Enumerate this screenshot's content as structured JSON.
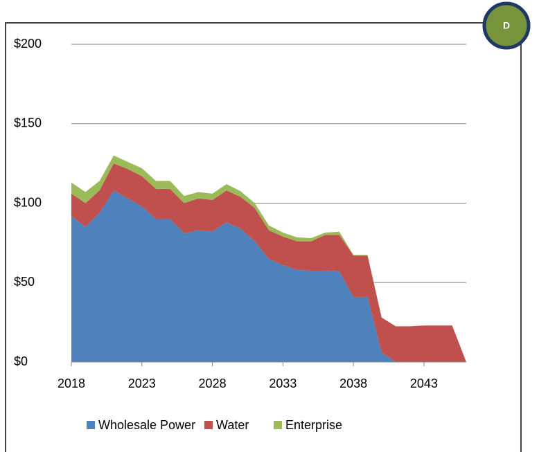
{
  "chart_data": {
    "type": "stacked-area",
    "badge": "D",
    "x": [
      2018,
      2019,
      2020,
      2021,
      2022,
      2023,
      2024,
      2025,
      2026,
      2027,
      2028,
      2029,
      2030,
      2031,
      2032,
      2033,
      2034,
      2035,
      2036,
      2037,
      2038,
      2039,
      2040,
      2041,
      2042,
      2043,
      2044,
      2045,
      2046
    ],
    "xlim": [
      2018,
      2046
    ],
    "xticks": [
      2018,
      2023,
      2028,
      2033,
      2038,
      2043
    ],
    "ylim": [
      0,
      200
    ],
    "yticks": [
      {
        "value": 0,
        "label": "$0"
      },
      {
        "value": 50,
        "label": "$50"
      },
      {
        "value": 100,
        "label": "$100"
      },
      {
        "value": 150,
        "label": "$150"
      },
      {
        "value": 200,
        "label": "$200"
      }
    ],
    "grid": true,
    "legend": "bottom",
    "series": [
      {
        "name": "Wholesale Power",
        "color": "#4f81bd",
        "values": [
          92,
          85,
          94,
          108,
          103,
          98,
          90,
          90,
          81,
          83,
          82,
          88,
          84,
          76,
          65,
          61,
          58,
          57.5,
          57.5,
          57,
          41,
          41,
          6,
          0,
          0,
          0,
          0,
          0,
          0
        ]
      },
      {
        "name": "Water",
        "color": "#c0504d",
        "values": [
          14,
          15,
          14,
          17,
          18.5,
          19,
          19,
          19,
          19,
          20,
          20,
          20,
          20,
          21,
          18,
          18,
          18,
          18.5,
          22.5,
          23,
          26,
          26,
          22,
          22.5,
          22.5,
          23,
          23,
          23,
          0
        ]
      },
      {
        "name": "Enterprise",
        "color": "#9bbb59",
        "values": [
          7,
          7,
          6,
          5,
          4.5,
          5,
          5,
          5,
          4.5,
          4,
          4,
          4,
          3.5,
          3,
          3,
          2.5,
          2.5,
          2,
          1.5,
          2,
          0.5,
          0.5,
          0,
          0,
          0,
          0,
          0,
          0,
          0
        ]
      }
    ]
  }
}
